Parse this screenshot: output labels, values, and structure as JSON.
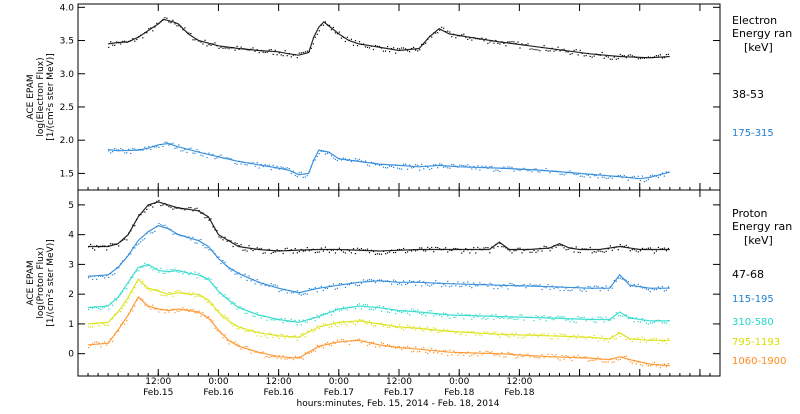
{
  "chart_data": [
    {
      "type": "scatter",
      "panel": "electron",
      "ylabel_lines": [
        "ACE EPAM",
        "log(Electron Flux)",
        "[1/(cm²s ster MeV)]"
      ],
      "legend_title_lines": [
        "Electron",
        "Energy ran",
        "[keV]"
      ],
      "ylim": [
        1.25,
        4.05
      ],
      "yticks": [
        1.5,
        2.0,
        2.5,
        3.0,
        3.5,
        4.0
      ],
      "ytick_labels": [
        "1.5",
        "2.0",
        "2.5",
        "3.0",
        "3.5",
        "4.0"
      ],
      "x_unit": "hours since 2014-02-15 00:00",
      "series": [
        {
          "name": "38-53",
          "color": "#000000",
          "x": [
            2,
            4,
            6,
            8,
            10,
            11,
            12,
            13,
            14,
            15,
            16,
            18,
            20,
            24,
            28,
            32,
            36,
            38,
            40,
            42,
            43,
            44,
            45,
            46,
            48,
            50,
            52,
            56,
            60,
            64,
            66,
            68,
            70,
            74,
            80,
            86,
            92,
            98,
            104,
            110,
            114
          ],
          "y": [
            3.45,
            3.47,
            3.48,
            3.55,
            3.65,
            3.7,
            3.75,
            3.82,
            3.8,
            3.78,
            3.75,
            3.6,
            3.5,
            3.42,
            3.38,
            3.35,
            3.33,
            3.3,
            3.28,
            3.32,
            3.55,
            3.7,
            3.78,
            3.72,
            3.6,
            3.5,
            3.45,
            3.4,
            3.35,
            3.38,
            3.55,
            3.68,
            3.6,
            3.55,
            3.48,
            3.42,
            3.36,
            3.3,
            3.26,
            3.24,
            3.26
          ]
        },
        {
          "name": "175-315",
          "color": "#1f7fd6",
          "x": [
            2,
            4,
            8,
            10,
            12,
            14,
            16,
            20,
            24,
            28,
            32,
            36,
            38,
            40,
            42,
            43,
            44,
            46,
            48,
            52,
            56,
            60,
            64,
            68,
            72,
            80,
            88,
            96,
            104,
            108,
            110,
            112,
            114
          ],
          "y": [
            1.86,
            1.84,
            1.85,
            1.88,
            1.93,
            1.95,
            1.9,
            1.82,
            1.75,
            1.68,
            1.63,
            1.58,
            1.55,
            1.48,
            1.5,
            1.7,
            1.85,
            1.82,
            1.72,
            1.68,
            1.64,
            1.62,
            1.6,
            1.62,
            1.6,
            1.58,
            1.55,
            1.5,
            1.45,
            1.42,
            1.44,
            1.48,
            1.52
          ]
        }
      ]
    },
    {
      "type": "scatter",
      "panel": "proton",
      "ylabel_lines": [
        "ACE EPAM",
        "log(Proton Flux)",
        "[1/(cm²s ster MeV)]"
      ],
      "legend_title_lines": [
        "Proton",
        "Energy ran",
        "[keV]"
      ],
      "ylim": [
        -0.75,
        5.5
      ],
      "yticks": [
        0,
        1,
        2,
        3,
        4,
        5
      ],
      "ytick_labels": [
        "0",
        "1",
        "2",
        "3",
        "4",
        "5"
      ],
      "x_unit": "hours since 2014-02-15 00:00",
      "series": [
        {
          "name": "47-68",
          "color": "#000000",
          "x": [
            -2,
            2,
            4,
            6,
            8,
            10,
            12,
            14,
            16,
            18,
            20,
            22,
            24,
            26,
            28,
            32,
            36,
            40,
            44,
            48,
            56,
            64,
            72,
            78,
            80,
            82,
            86,
            90,
            92,
            94,
            96,
            100,
            104,
            108,
            114
          ],
          "y": [
            3.6,
            3.6,
            3.7,
            4.0,
            4.6,
            5.0,
            5.1,
            5.0,
            4.9,
            4.85,
            4.8,
            4.6,
            4.0,
            3.8,
            3.6,
            3.5,
            3.45,
            3.48,
            3.5,
            3.5,
            3.45,
            3.5,
            3.5,
            3.5,
            3.75,
            3.5,
            3.5,
            3.55,
            3.7,
            3.55,
            3.5,
            3.5,
            3.6,
            3.5,
            3.5
          ]
        },
        {
          "name": "115-195",
          "color": "#1f7fd6",
          "x": [
            -2,
            2,
            4,
            6,
            8,
            10,
            12,
            14,
            16,
            18,
            20,
            22,
            24,
            26,
            28,
            32,
            36,
            40,
            44,
            48,
            52,
            56,
            60,
            64,
            70,
            80,
            90,
            98,
            102,
            104,
            106,
            110,
            114
          ],
          "y": [
            2.6,
            2.65,
            2.9,
            3.3,
            3.8,
            4.1,
            4.3,
            4.2,
            4.0,
            3.9,
            3.8,
            3.6,
            3.2,
            2.9,
            2.7,
            2.4,
            2.2,
            2.05,
            2.2,
            2.3,
            2.4,
            2.45,
            2.4,
            2.4,
            2.35,
            2.3,
            2.25,
            2.2,
            2.2,
            2.65,
            2.3,
            2.2,
            2.2
          ]
        },
        {
          "name": "310-580",
          "color": "#22d8c8",
          "x": [
            -2,
            2,
            4,
            6,
            8,
            10,
            12,
            14,
            16,
            18,
            20,
            22,
            24,
            26,
            28,
            32,
            36,
            40,
            44,
            48,
            52,
            56,
            60,
            64,
            70,
            80,
            90,
            98,
            102,
            104,
            106,
            110,
            114
          ],
          "y": [
            1.55,
            1.6,
            1.9,
            2.4,
            2.9,
            3.0,
            2.8,
            2.75,
            2.8,
            2.7,
            2.65,
            2.5,
            2.1,
            1.8,
            1.55,
            1.3,
            1.15,
            1.05,
            1.25,
            1.5,
            1.6,
            1.55,
            1.45,
            1.4,
            1.3,
            1.25,
            1.2,
            1.15,
            1.15,
            1.4,
            1.2,
            1.1,
            1.1
          ]
        },
        {
          "name": "795-1193",
          "color": "#d8e000",
          "x": [
            -2,
            2,
            4,
            6,
            8,
            10,
            12,
            14,
            16,
            18,
            20,
            22,
            24,
            26,
            28,
            32,
            36,
            40,
            44,
            48,
            52,
            56,
            60,
            64,
            70,
            80,
            90,
            98,
            102,
            104,
            106,
            110,
            114
          ],
          "y": [
            1.0,
            1.05,
            1.4,
            1.9,
            2.5,
            2.2,
            2.1,
            2.0,
            2.05,
            2.0,
            2.0,
            1.8,
            1.4,
            1.1,
            0.9,
            0.7,
            0.6,
            0.55,
            0.9,
            1.05,
            1.1,
            1.0,
            0.9,
            0.85,
            0.75,
            0.65,
            0.6,
            0.55,
            0.5,
            0.7,
            0.5,
            0.45,
            0.45
          ]
        },
        {
          "name": "1060-1900",
          "color": "#ff8c1a",
          "x": [
            -2,
            2,
            4,
            6,
            8,
            10,
            12,
            14,
            16,
            18,
            20,
            22,
            24,
            26,
            28,
            32,
            36,
            40,
            44,
            48,
            52,
            56,
            60,
            64,
            70,
            80,
            90,
            98,
            102,
            104,
            106,
            110,
            114
          ],
          "y": [
            0.3,
            0.35,
            0.8,
            1.3,
            1.9,
            1.6,
            1.5,
            1.45,
            1.5,
            1.45,
            1.4,
            1.2,
            0.8,
            0.45,
            0.25,
            0.05,
            -0.1,
            -0.15,
            0.25,
            0.4,
            0.45,
            0.3,
            0.2,
            0.15,
            0.05,
            0.0,
            -0.1,
            -0.15,
            -0.2,
            -0.1,
            -0.2,
            -0.35,
            -0.4
          ]
        }
      ]
    }
  ],
  "x_axis": {
    "range_hours": [
      -4,
      124
    ],
    "ticks_hours": [
      12,
      24,
      36,
      48,
      60,
      72,
      84,
      96,
      108,
      120
    ],
    "tick_labels_top": [
      "12:00",
      "0:00",
      "12:00",
      "0:00",
      "12:00",
      "0:00",
      "12:00"
    ],
    "tick_labels_bottom": [
      "Feb.15",
      "Feb.16",
      "Feb.16",
      "Feb.17",
      "Feb.17",
      "Feb.18",
      "Feb.18"
    ],
    "labeled_tick_hours": [
      12,
      24,
      36,
      48,
      60,
      72,
      84
    ],
    "title": "hours:minutes, Feb. 15, 2014 - Feb. 18, 2014"
  }
}
